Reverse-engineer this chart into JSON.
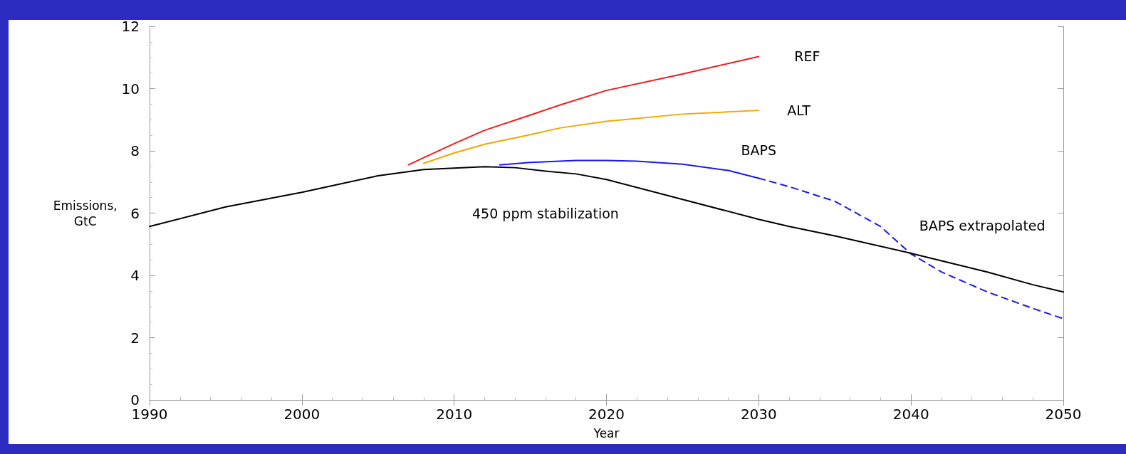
{
  "chart_data": {
    "type": "line",
    "xlabel": "Year",
    "ylabel": "Emissions,\nGtC",
    "xlim": [
      1990,
      2050
    ],
    "xticks": [
      1990,
      2000,
      2010,
      2020,
      2030,
      2040,
      2050
    ],
    "ylim": [
      0,
      12
    ],
    "yticks": [
      0,
      2,
      4,
      6,
      8,
      10,
      12
    ],
    "grid": false,
    "legend": false,
    "marker": "none",
    "series": [
      {
        "name": "REF",
        "color": "#ee1c1c",
        "line_style": "solid",
        "x": [
          2007,
          2008,
          2010,
          2012,
          2015,
          2017,
          2020,
          2025,
          2030
        ],
        "values": [
          7.55,
          7.78,
          8.23,
          8.66,
          9.15,
          9.48,
          9.94,
          10.47,
          11.03
        ]
      },
      {
        "name": "ALT",
        "color": "#f0a800",
        "line_style": "solid",
        "x": [
          2008,
          2010,
          2012,
          2015,
          2017,
          2020,
          2025,
          2030
        ],
        "values": [
          7.6,
          7.93,
          8.21,
          8.52,
          8.74,
          8.95,
          9.18,
          9.3
        ]
      },
      {
        "name": "BAPS",
        "color": "#1a1aee",
        "line_style": "solid",
        "x": [
          2013,
          2015,
          2018,
          2020,
          2022,
          2025,
          2028,
          2030
        ],
        "values": [
          7.55,
          7.63,
          7.69,
          7.69,
          7.67,
          7.57,
          7.37,
          7.12
        ]
      },
      {
        "name": "BAPS extrapolated",
        "color": "#1a1aee",
        "line_style": "dashed",
        "x": [
          2030,
          2032,
          2035,
          2038,
          2040,
          2042,
          2045,
          2048,
          2050
        ],
        "values": [
          7.12,
          6.85,
          6.38,
          5.57,
          4.69,
          4.11,
          3.47,
          2.94,
          2.61
        ]
      },
      {
        "name": "450 ppm stabilization",
        "color": "#000000",
        "line_style": "solid",
        "x": [
          1990,
          1995,
          2000,
          2005,
          2008,
          2012,
          2014,
          2016,
          2018,
          2020,
          2025,
          2030,
          2032,
          2035,
          2040,
          2045,
          2048,
          2050
        ],
        "values": [
          5.57,
          6.2,
          6.67,
          7.2,
          7.4,
          7.49,
          7.46,
          7.35,
          7.26,
          7.08,
          6.44,
          5.8,
          5.57,
          5.27,
          4.71,
          4.11,
          3.7,
          3.47
        ]
      }
    ]
  }
}
